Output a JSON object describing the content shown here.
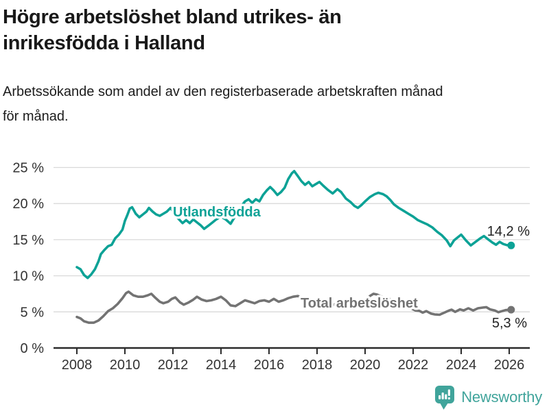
{
  "header": {
    "title_lines": [
      "Högre arbetslöshet bland utrikes- än",
      "inrikesfödda i Halland"
    ],
    "subtitle_lines": [
      "Arbetssökande som andel av den registerbaserade arbetskraften månad",
      "för månad."
    ]
  },
  "chart_data": {
    "type": "line",
    "title": "Högre arbetslöshet bland utrikes- än inrikesfödda i Halland",
    "subtitle": "Arbetssökande som andel av den registerbaserade arbetskraften månad för månad.",
    "xlabel": "",
    "ylabel": "",
    "ylim": [
      0,
      25
    ],
    "xlim": [
      2007,
      2027
    ],
    "grid": "horizontal",
    "axis_color": "#2b2b2b",
    "grid_color": "#d9d9d9",
    "y_ticks": [
      {
        "value": 0,
        "label": "0 %"
      },
      {
        "value": 5,
        "label": "5 %"
      },
      {
        "value": 10,
        "label": "10 %"
      },
      {
        "value": 15,
        "label": "15 %"
      },
      {
        "value": 20,
        "label": "20 %"
      },
      {
        "value": 25,
        "label": "25 %"
      }
    ],
    "x_ticks": [
      2008,
      2010,
      2012,
      2014,
      2016,
      2018,
      2020,
      2022,
      2024,
      2026
    ],
    "series": [
      {
        "name": "Utlandsfödda",
        "color": "#0da296",
        "end_label": "14,2 %",
        "end_value": 14.2,
        "points": [
          [
            2008.0,
            11.2
          ],
          [
            2008.15,
            10.9
          ],
          [
            2008.3,
            10.1
          ],
          [
            2008.45,
            9.7
          ],
          [
            2008.6,
            10.2
          ],
          [
            2008.75,
            10.9
          ],
          [
            2008.9,
            12.0
          ],
          [
            2009.0,
            13.0
          ],
          [
            2009.15,
            13.6
          ],
          [
            2009.3,
            14.1
          ],
          [
            2009.45,
            14.3
          ],
          [
            2009.6,
            15.2
          ],
          [
            2009.75,
            15.7
          ],
          [
            2009.9,
            16.4
          ],
          [
            2010.0,
            17.6
          ],
          [
            2010.1,
            18.4
          ],
          [
            2010.2,
            19.3
          ],
          [
            2010.3,
            19.5
          ],
          [
            2010.45,
            18.6
          ],
          [
            2010.6,
            18.1
          ],
          [
            2010.75,
            18.5
          ],
          [
            2010.9,
            18.9
          ],
          [
            2011.0,
            19.4
          ],
          [
            2011.15,
            18.9
          ],
          [
            2011.3,
            18.5
          ],
          [
            2011.45,
            18.3
          ],
          [
            2011.6,
            18.6
          ],
          [
            2011.75,
            18.9
          ],
          [
            2011.9,
            19.4
          ],
          [
            2012.05,
            18.7
          ],
          [
            2012.2,
            18.0
          ],
          [
            2012.4,
            17.3
          ],
          [
            2012.55,
            17.7
          ],
          [
            2012.7,
            17.3
          ],
          [
            2012.85,
            17.8
          ],
          [
            2013.0,
            17.4
          ],
          [
            2013.15,
            17.0
          ],
          [
            2013.3,
            16.5
          ],
          [
            2013.5,
            17.0
          ],
          [
            2013.65,
            17.4
          ],
          [
            2013.8,
            17.8
          ],
          [
            2014.0,
            18.2
          ],
          [
            2014.2,
            17.8
          ],
          [
            2014.4,
            17.2
          ],
          [
            2014.6,
            18.3
          ],
          [
            2014.8,
            19.4
          ],
          [
            2015.0,
            20.3
          ],
          [
            2015.15,
            20.6
          ],
          [
            2015.3,
            20.1
          ],
          [
            2015.45,
            20.6
          ],
          [
            2015.6,
            20.3
          ],
          [
            2015.75,
            21.2
          ],
          [
            2015.9,
            21.8
          ],
          [
            2016.05,
            22.3
          ],
          [
            2016.2,
            21.8
          ],
          [
            2016.35,
            21.2
          ],
          [
            2016.5,
            21.6
          ],
          [
            2016.65,
            22.2
          ],
          [
            2016.8,
            23.4
          ],
          [
            2016.95,
            24.2
          ],
          [
            2017.05,
            24.5
          ],
          [
            2017.2,
            23.8
          ],
          [
            2017.35,
            23.1
          ],
          [
            2017.5,
            22.6
          ],
          [
            2017.65,
            23.0
          ],
          [
            2017.8,
            22.4
          ],
          [
            2017.95,
            22.7
          ],
          [
            2018.1,
            23.0
          ],
          [
            2018.25,
            22.5
          ],
          [
            2018.45,
            21.9
          ],
          [
            2018.65,
            21.4
          ],
          [
            2018.85,
            22.0
          ],
          [
            2019.0,
            21.6
          ],
          [
            2019.2,
            20.7
          ],
          [
            2019.4,
            20.2
          ],
          [
            2019.55,
            19.7
          ],
          [
            2019.7,
            19.4
          ],
          [
            2019.85,
            19.8
          ],
          [
            2020.0,
            20.3
          ],
          [
            2020.2,
            20.9
          ],
          [
            2020.4,
            21.3
          ],
          [
            2020.55,
            21.5
          ],
          [
            2020.75,
            21.3
          ],
          [
            2020.9,
            21.0
          ],
          [
            2021.05,
            20.5
          ],
          [
            2021.2,
            19.9
          ],
          [
            2021.4,
            19.4
          ],
          [
            2021.6,
            19.0
          ],
          [
            2021.8,
            18.6
          ],
          [
            2022.0,
            18.2
          ],
          [
            2022.2,
            17.7
          ],
          [
            2022.4,
            17.4
          ],
          [
            2022.6,
            17.1
          ],
          [
            2022.8,
            16.7
          ],
          [
            2023.0,
            16.1
          ],
          [
            2023.2,
            15.6
          ],
          [
            2023.4,
            14.9
          ],
          [
            2023.55,
            14.1
          ],
          [
            2023.7,
            14.9
          ],
          [
            2023.85,
            15.3
          ],
          [
            2024.0,
            15.7
          ],
          [
            2024.2,
            14.9
          ],
          [
            2024.4,
            14.2
          ],
          [
            2024.6,
            14.7
          ],
          [
            2024.8,
            15.2
          ],
          [
            2024.95,
            15.5
          ],
          [
            2025.1,
            15.1
          ],
          [
            2025.3,
            14.6
          ],
          [
            2025.45,
            14.3
          ],
          [
            2025.6,
            14.7
          ],
          [
            2025.75,
            14.4
          ],
          [
            2025.9,
            14.25
          ],
          [
            2026.08,
            14.2
          ]
        ]
      },
      {
        "name": "Total arbetslöshet",
        "color": "#737373",
        "end_label": "5,3 %",
        "end_value": 5.3,
        "points": [
          [
            2008.0,
            4.3
          ],
          [
            2008.15,
            4.1
          ],
          [
            2008.3,
            3.7
          ],
          [
            2008.5,
            3.5
          ],
          [
            2008.7,
            3.5
          ],
          [
            2008.9,
            3.8
          ],
          [
            2009.1,
            4.4
          ],
          [
            2009.3,
            5.1
          ],
          [
            2009.5,
            5.5
          ],
          [
            2009.7,
            6.1
          ],
          [
            2009.9,
            6.9
          ],
          [
            2010.05,
            7.6
          ],
          [
            2010.15,
            7.8
          ],
          [
            2010.35,
            7.3
          ],
          [
            2010.55,
            7.1
          ],
          [
            2010.75,
            7.1
          ],
          [
            2010.95,
            7.3
          ],
          [
            2011.1,
            7.5
          ],
          [
            2011.25,
            7.0
          ],
          [
            2011.45,
            6.4
          ],
          [
            2011.6,
            6.2
          ],
          [
            2011.8,
            6.4
          ],
          [
            2011.95,
            6.8
          ],
          [
            2012.1,
            7.0
          ],
          [
            2012.3,
            6.3
          ],
          [
            2012.45,
            6.0
          ],
          [
            2012.65,
            6.3
          ],
          [
            2012.85,
            6.7
          ],
          [
            2013.0,
            7.1
          ],
          [
            2013.2,
            6.7
          ],
          [
            2013.4,
            6.5
          ],
          [
            2013.6,
            6.6
          ],
          [
            2013.8,
            6.8
          ],
          [
            2014.0,
            7.1
          ],
          [
            2014.2,
            6.6
          ],
          [
            2014.4,
            5.9
          ],
          [
            2014.6,
            5.8
          ],
          [
            2014.8,
            6.2
          ],
          [
            2015.0,
            6.6
          ],
          [
            2015.2,
            6.4
          ],
          [
            2015.4,
            6.2
          ],
          [
            2015.6,
            6.5
          ],
          [
            2015.8,
            6.6
          ],
          [
            2016.0,
            6.4
          ],
          [
            2016.2,
            6.8
          ],
          [
            2016.4,
            6.4
          ],
          [
            2016.6,
            6.6
          ],
          [
            2016.8,
            6.9
          ],
          [
            2017.0,
            7.1
          ],
          [
            2017.2,
            7.2
          ],
          [
            2017.4,
            6.8
          ],
          [
            2017.6,
            6.3
          ],
          [
            2017.8,
            6.0
          ],
          [
            2018.0,
            6.3
          ],
          [
            2018.2,
            6.5
          ],
          [
            2018.4,
            6.1
          ],
          [
            2018.6,
            5.9
          ],
          [
            2018.8,
            6.1
          ],
          [
            2019.0,
            6.0
          ],
          [
            2019.2,
            5.8
          ],
          [
            2019.4,
            5.6
          ],
          [
            2019.6,
            5.7
          ],
          [
            2019.8,
            5.9
          ],
          [
            2020.0,
            6.3
          ],
          [
            2020.2,
            7.2
          ],
          [
            2020.35,
            7.5
          ],
          [
            2020.5,
            7.4
          ],
          [
            2020.7,
            7.1
          ],
          [
            2020.9,
            6.9
          ],
          [
            2021.1,
            6.7
          ],
          [
            2021.3,
            6.3
          ],
          [
            2021.5,
            6.0
          ],
          [
            2021.7,
            5.7
          ],
          [
            2021.9,
            5.5
          ],
          [
            2022.1,
            5.2
          ],
          [
            2022.25,
            5.15
          ],
          [
            2022.4,
            4.9
          ],
          [
            2022.55,
            5.1
          ],
          [
            2022.75,
            4.75
          ],
          [
            2022.9,
            4.65
          ],
          [
            2023.1,
            4.6
          ],
          [
            2023.3,
            4.9
          ],
          [
            2023.5,
            5.2
          ],
          [
            2023.6,
            5.3
          ],
          [
            2023.75,
            5.0
          ],
          [
            2023.95,
            5.35
          ],
          [
            2024.1,
            5.2
          ],
          [
            2024.3,
            5.5
          ],
          [
            2024.5,
            5.2
          ],
          [
            2024.7,
            5.5
          ],
          [
            2024.9,
            5.6
          ],
          [
            2025.05,
            5.65
          ],
          [
            2025.2,
            5.35
          ],
          [
            2025.4,
            5.2
          ],
          [
            2025.55,
            4.95
          ],
          [
            2025.7,
            5.1
          ],
          [
            2025.85,
            5.25
          ],
          [
            2026.08,
            5.3
          ]
        ]
      }
    ]
  },
  "footer": {
    "brand": "Newsworthy",
    "logo_color": "#40a49b"
  }
}
